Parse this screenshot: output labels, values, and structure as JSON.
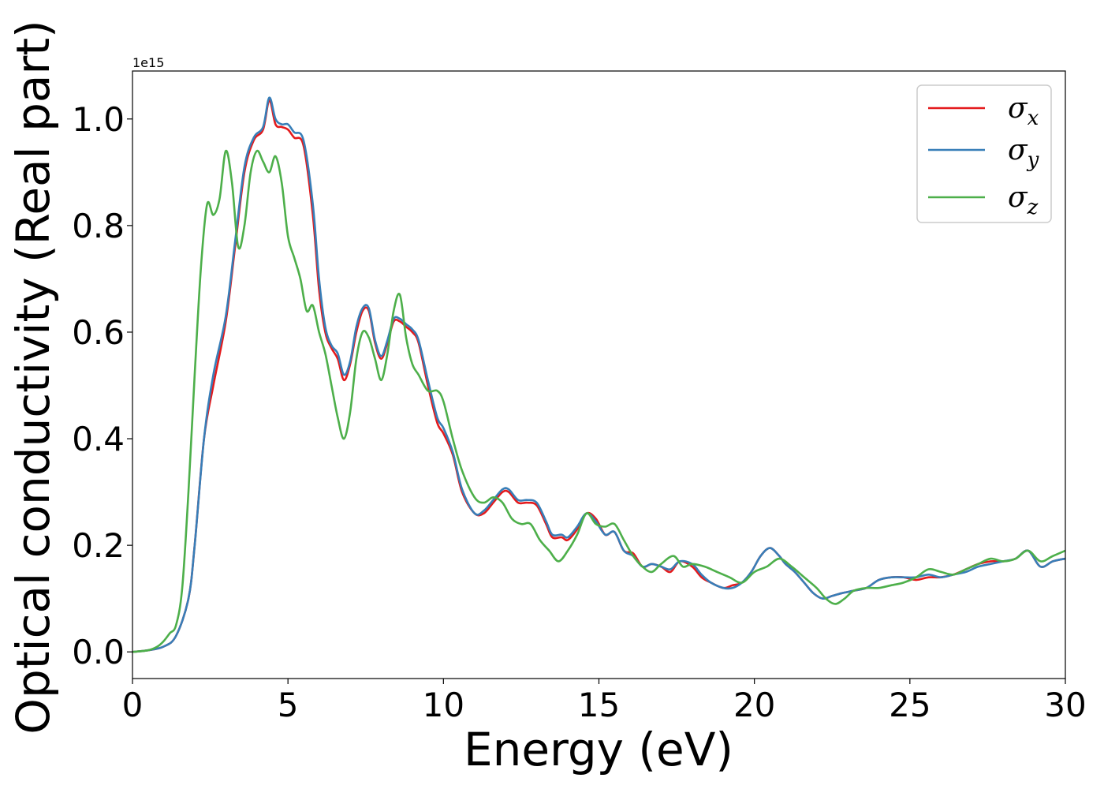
{
  "chart_data": {
    "type": "line",
    "xlabel": "Energy (eV)",
    "ylabel": "Optical conductivity (Real part)",
    "y_offset_label": "1e15",
    "xlim": [
      0,
      30
    ],
    "ylim": [
      -0.05,
      1.09
    ],
    "xticks": [
      0,
      5,
      10,
      15,
      20,
      25,
      30
    ],
    "xtick_labels": [
      "0",
      "5",
      "10",
      "15",
      "20",
      "25",
      "30"
    ],
    "yticks": [
      0.0,
      0.2,
      0.4,
      0.6,
      0.8,
      1.0
    ],
    "ytick_labels": [
      "0.0",
      "0.2",
      "0.4",
      "0.6",
      "0.8",
      "1.0"
    ],
    "grid": false,
    "legend_position": "top-right",
    "series": [
      {
        "name": "σx",
        "symbol": "σ",
        "subscript": "x",
        "color": "#e41a1c",
        "x": [
          0,
          0.5,
          1.0,
          1.4,
          1.8,
          2.0,
          2.3,
          2.6,
          3.0,
          3.3,
          3.6,
          3.9,
          4.2,
          4.4,
          4.6,
          4.8,
          5.0,
          5.2,
          5.5,
          5.8,
          6.0,
          6.2,
          6.4,
          6.6,
          6.8,
          7.0,
          7.2,
          7.4,
          7.6,
          7.8,
          8.0,
          8.2,
          8.4,
          8.6,
          8.8,
          9.0,
          9.2,
          9.5,
          9.8,
          10.0,
          10.3,
          10.6,
          11.0,
          11.3,
          11.6,
          11.9,
          12.1,
          12.4,
          12.7,
          13.0,
          13.3,
          13.5,
          13.8,
          14.0,
          14.3,
          14.6,
          14.9,
          15.2,
          15.5,
          15.8,
          16.1,
          16.4,
          16.7,
          17.0,
          17.3,
          17.6,
          18.0,
          18.3,
          18.6,
          19.0,
          19.3,
          19.6,
          19.9,
          20.2,
          20.5,
          20.8,
          21.0,
          21.3,
          21.6,
          21.9,
          22.2,
          22.5,
          22.8,
          23.2,
          23.6,
          24.0,
          24.4,
          24.8,
          25.2,
          25.6,
          26.0,
          26.4,
          26.8,
          27.2,
          27.6,
          28.0,
          28.4,
          28.8,
          29.2,
          29.6,
          30.0
        ],
        "y": [
          0.0,
          0.003,
          0.01,
          0.03,
          0.1,
          0.2,
          0.4,
          0.5,
          0.62,
          0.76,
          0.9,
          0.96,
          0.98,
          1.035,
          0.99,
          0.985,
          0.98,
          0.965,
          0.95,
          0.82,
          0.68,
          0.6,
          0.57,
          0.55,
          0.51,
          0.54,
          0.6,
          0.64,
          0.64,
          0.58,
          0.55,
          0.58,
          0.62,
          0.62,
          0.61,
          0.6,
          0.58,
          0.5,
          0.43,
          0.41,
          0.37,
          0.3,
          0.26,
          0.26,
          0.28,
          0.3,
          0.3,
          0.28,
          0.28,
          0.275,
          0.24,
          0.215,
          0.215,
          0.21,
          0.23,
          0.26,
          0.25,
          0.22,
          0.225,
          0.19,
          0.185,
          0.16,
          0.165,
          0.16,
          0.15,
          0.17,
          0.16,
          0.14,
          0.13,
          0.12,
          0.125,
          0.13,
          0.15,
          0.18,
          0.195,
          0.18,
          0.165,
          0.15,
          0.13,
          0.11,
          0.1,
          0.105,
          0.11,
          0.115,
          0.12,
          0.135,
          0.14,
          0.14,
          0.135,
          0.14,
          0.14,
          0.145,
          0.155,
          0.165,
          0.17,
          0.17,
          0.175,
          0.19,
          0.16,
          0.17,
          0.175
        ]
      },
      {
        "name": "σy",
        "symbol": "σ",
        "subscript": "y",
        "color": "#377eb8",
        "x": [
          0,
          0.5,
          1.0,
          1.4,
          1.8,
          2.0,
          2.3,
          2.6,
          3.0,
          3.3,
          3.6,
          3.9,
          4.2,
          4.4,
          4.6,
          4.8,
          5.0,
          5.2,
          5.5,
          5.8,
          6.0,
          6.2,
          6.4,
          6.6,
          6.8,
          7.0,
          7.2,
          7.4,
          7.6,
          7.8,
          8.0,
          8.2,
          8.4,
          8.6,
          8.8,
          9.0,
          9.2,
          9.5,
          9.8,
          10.0,
          10.3,
          10.6,
          11.0,
          11.3,
          11.6,
          11.9,
          12.1,
          12.4,
          12.7,
          13.0,
          13.3,
          13.5,
          13.8,
          14.0,
          14.3,
          14.6,
          14.9,
          15.2,
          15.5,
          15.8,
          16.1,
          16.4,
          16.7,
          17.0,
          17.3,
          17.6,
          18.0,
          18.3,
          18.6,
          19.0,
          19.3,
          19.6,
          19.9,
          20.2,
          20.5,
          20.8,
          21.0,
          21.3,
          21.6,
          21.9,
          22.2,
          22.5,
          22.8,
          23.2,
          23.6,
          24.0,
          24.4,
          24.8,
          25.2,
          25.6,
          26.0,
          26.4,
          26.8,
          27.2,
          27.6,
          28.0,
          28.4,
          28.8,
          29.2,
          29.6,
          30.0
        ],
        "y": [
          0.0,
          0.003,
          0.01,
          0.03,
          0.1,
          0.2,
          0.4,
          0.52,
          0.63,
          0.77,
          0.91,
          0.965,
          0.985,
          1.04,
          1.0,
          0.99,
          0.99,
          0.975,
          0.96,
          0.84,
          0.7,
          0.61,
          0.575,
          0.56,
          0.52,
          0.545,
          0.61,
          0.645,
          0.645,
          0.585,
          0.555,
          0.585,
          0.625,
          0.625,
          0.615,
          0.605,
          0.585,
          0.51,
          0.44,
          0.42,
          0.375,
          0.305,
          0.26,
          0.265,
          0.285,
          0.305,
          0.305,
          0.285,
          0.285,
          0.28,
          0.245,
          0.22,
          0.22,
          0.215,
          0.235,
          0.26,
          0.245,
          0.22,
          0.225,
          0.19,
          0.18,
          0.16,
          0.165,
          0.16,
          0.155,
          0.17,
          0.165,
          0.145,
          0.13,
          0.12,
          0.12,
          0.13,
          0.15,
          0.18,
          0.195,
          0.18,
          0.165,
          0.15,
          0.13,
          0.11,
          0.1,
          0.105,
          0.11,
          0.115,
          0.12,
          0.135,
          0.14,
          0.14,
          0.14,
          0.145,
          0.14,
          0.145,
          0.15,
          0.16,
          0.165,
          0.17,
          0.175,
          0.19,
          0.16,
          0.17,
          0.175
        ]
      },
      {
        "name": "σz",
        "symbol": "σ",
        "subscript": "z",
        "color": "#4daf4a",
        "x": [
          0,
          0.5,
          0.8,
          1.0,
          1.2,
          1.4,
          1.6,
          1.8,
          2.0,
          2.2,
          2.4,
          2.6,
          2.8,
          3.0,
          3.2,
          3.4,
          3.6,
          3.8,
          4.0,
          4.2,
          4.4,
          4.6,
          4.8,
          5.0,
          5.2,
          5.4,
          5.6,
          5.8,
          6.0,
          6.2,
          6.4,
          6.6,
          6.8,
          7.0,
          7.2,
          7.4,
          7.6,
          7.8,
          8.0,
          8.2,
          8.4,
          8.6,
          8.8,
          9.0,
          9.2,
          9.5,
          9.8,
          10.0,
          10.3,
          10.6,
          11.0,
          11.3,
          11.6,
          11.9,
          12.2,
          12.5,
          12.8,
          13.1,
          13.4,
          13.7,
          14.0,
          14.3,
          14.6,
          14.9,
          15.2,
          15.5,
          15.8,
          16.1,
          16.4,
          16.7,
          17.0,
          17.4,
          17.7,
          18.0,
          18.4,
          18.8,
          19.2,
          19.6,
          20.0,
          20.4,
          20.8,
          21.2,
          21.6,
          22.0,
          22.3,
          22.6,
          22.9,
          23.2,
          23.6,
          24.0,
          24.4,
          24.8,
          25.2,
          25.6,
          26.0,
          26.4,
          26.8,
          27.2,
          27.6,
          28.0,
          28.4,
          28.8,
          29.2,
          29.6,
          30.0
        ],
        "y": [
          0.0,
          0.003,
          0.01,
          0.02,
          0.035,
          0.05,
          0.12,
          0.3,
          0.52,
          0.72,
          0.84,
          0.82,
          0.85,
          0.94,
          0.88,
          0.76,
          0.8,
          0.9,
          0.94,
          0.92,
          0.9,
          0.93,
          0.88,
          0.78,
          0.74,
          0.7,
          0.64,
          0.65,
          0.6,
          0.56,
          0.5,
          0.44,
          0.4,
          0.45,
          0.55,
          0.6,
          0.59,
          0.55,
          0.51,
          0.56,
          0.64,
          0.67,
          0.59,
          0.54,
          0.52,
          0.49,
          0.49,
          0.47,
          0.4,
          0.34,
          0.29,
          0.28,
          0.29,
          0.28,
          0.25,
          0.24,
          0.24,
          0.21,
          0.19,
          0.17,
          0.19,
          0.22,
          0.26,
          0.24,
          0.235,
          0.24,
          0.21,
          0.18,
          0.16,
          0.15,
          0.165,
          0.18,
          0.16,
          0.165,
          0.16,
          0.15,
          0.14,
          0.13,
          0.15,
          0.16,
          0.175,
          0.16,
          0.14,
          0.12,
          0.1,
          0.09,
          0.1,
          0.115,
          0.12,
          0.12,
          0.125,
          0.13,
          0.14,
          0.155,
          0.15,
          0.145,
          0.155,
          0.165,
          0.175,
          0.17,
          0.175,
          0.19,
          0.17,
          0.18,
          0.19
        ]
      }
    ]
  }
}
